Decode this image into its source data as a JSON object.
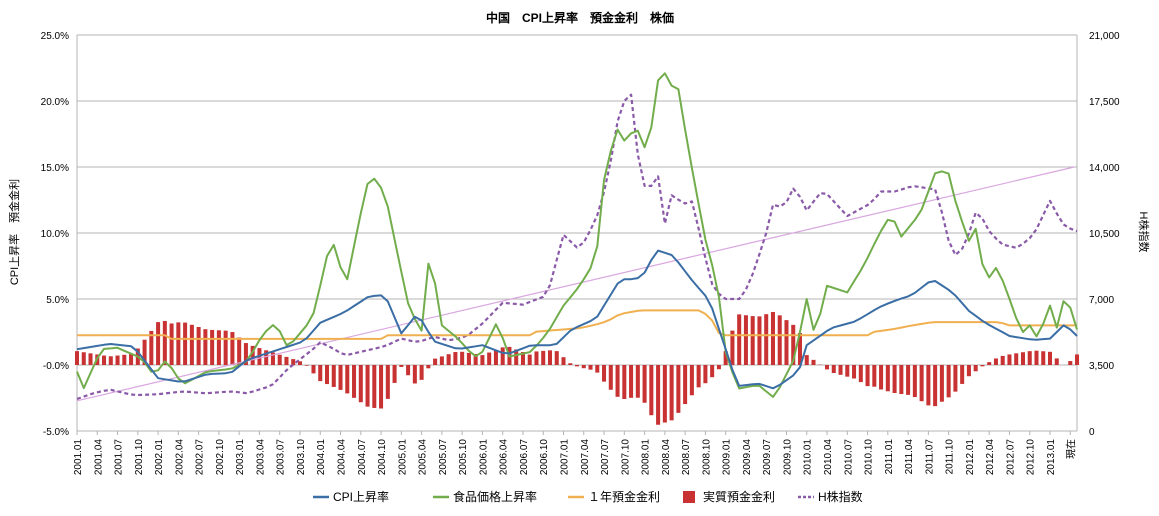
{
  "chart_data": {
    "type": "bar+line",
    "title": "中国　CPI上昇率　預金金利　株価",
    "ylabel_left": "CPI上昇率　預金金利",
    "ylabel_right": "H株指数",
    "y_left_range": [
      -5.0,
      25.0
    ],
    "y_left_ticks": [
      "-5.0%",
      "-0.0%",
      "5.0%",
      "10.0%",
      "15.0%",
      "20.0%",
      "25.0%"
    ],
    "y_right_range": [
      0,
      21000
    ],
    "y_right_ticks": [
      "0",
      "3,500",
      "7,000",
      "10,500",
      "14,000",
      "17,500",
      "21,000"
    ],
    "x_tick_labels": [
      "2001.01",
      "2001.04",
      "2001.07",
      "2001.10",
      "2002.01",
      "2002.04",
      "2002.07",
      "2002.10",
      "2003.01",
      "2003.04",
      "2003.07",
      "2003.10",
      "2004.01",
      "2004.04",
      "2004.07",
      "2004.10",
      "2005.01",
      "2005.04",
      "2005.07",
      "2005.10",
      "2006.01",
      "2006.04",
      "2006.07",
      "2006.10",
      "2007.01",
      "2007.04",
      "2007.07",
      "2007.10",
      "2008.01",
      "2008.04",
      "2008.07",
      "2008.10",
      "2009.01",
      "2009.04",
      "2009.07",
      "2009.10",
      "2010.01",
      "2010.04",
      "2010.07",
      "2010.10",
      "2011.01",
      "2011.04",
      "2011.07",
      "2011.10",
      "2012.01",
      "2012.04",
      "2012.07",
      "2012.10",
      "2013.01",
      "現在"
    ],
    "series": [
      {
        "name": "CPI上昇率",
        "kind": "line",
        "color": "#3a6ea5"
      },
      {
        "name": "食品価格上昇率",
        "kind": "line",
        "color": "#72ad4c"
      },
      {
        "name": "１年預金金利",
        "kind": "line",
        "color": "#f0b050"
      },
      {
        "name": "実質預金金利",
        "kind": "bar",
        "color": "#c83232"
      },
      {
        "name": "H株指数",
        "kind": "dashed-line",
        "color": "#8a5aa8"
      }
    ],
    "cpi_anchors": [
      [
        2001.0,
        1.2
      ],
      [
        2001.4,
        1.6
      ],
      [
        2001.7,
        1.4
      ],
      [
        2001.9,
        -0.2
      ],
      [
        2002.0,
        -1.0
      ],
      [
        2002.3,
        -1.3
      ],
      [
        2002.6,
        -0.7
      ],
      [
        2002.9,
        -0.6
      ],
      [
        2003.1,
        0.4
      ],
      [
        2003.4,
        1.0
      ],
      [
        2003.8,
        1.8
      ],
      [
        2004.0,
        3.2
      ],
      [
        2004.3,
        4.0
      ],
      [
        2004.6,
        5.2
      ],
      [
        2004.8,
        5.3
      ],
      [
        2005.0,
        2.4
      ],
      [
        2005.2,
        3.9
      ],
      [
        2005.4,
        1.8
      ],
      [
        2005.7,
        1.2
      ],
      [
        2006.0,
        1.5
      ],
      [
        2006.3,
        0.8
      ],
      [
        2006.6,
        1.5
      ],
      [
        2006.9,
        1.5
      ],
      [
        2007.1,
        2.7
      ],
      [
        2007.4,
        3.5
      ],
      [
        2007.7,
        6.5
      ],
      [
        2007.9,
        6.5
      ],
      [
        2008.0,
        7.0
      ],
      [
        2008.15,
        8.7
      ],
      [
        2008.35,
        8.3
      ],
      [
        2008.6,
        6.3
      ],
      [
        2008.8,
        4.9
      ],
      [
        2009.0,
        1.2
      ],
      [
        2009.15,
        -1.6
      ],
      [
        2009.4,
        -1.4
      ],
      [
        2009.6,
        -1.8
      ],
      [
        2009.9,
        -0.5
      ],
      [
        2010.0,
        1.5
      ],
      [
        2010.3,
        2.8
      ],
      [
        2010.6,
        3.3
      ],
      [
        2010.9,
        4.4
      ],
      [
        2011.1,
        4.9
      ],
      [
        2011.3,
        5.3
      ],
      [
        2011.55,
        6.5
      ],
      [
        2011.8,
        5.5
      ],
      [
        2012.0,
        4.1
      ],
      [
        2012.2,
        3.2
      ],
      [
        2012.5,
        2.2
      ],
      [
        2012.8,
        1.9
      ],
      [
        2013.0,
        2.0
      ],
      [
        2013.2,
        3.2
      ],
      [
        2013.3,
        2.2
      ]
    ],
    "food_anchors": [
      [
        2001.0,
        -0.5
      ],
      [
        2001.05,
        -2.2
      ],
      [
        2001.3,
        1.2
      ],
      [
        2001.5,
        1.3
      ],
      [
        2001.8,
        0.5
      ],
      [
        2001.95,
        -0.8
      ],
      [
        2002.1,
        0.4
      ],
      [
        2002.3,
        -1.5
      ],
      [
        2002.6,
        -0.5
      ],
      [
        2002.9,
        -0.3
      ],
      [
        2003.1,
        0.3
      ],
      [
        2003.3,
        2.4
      ],
      [
        2003.45,
        3.2
      ],
      [
        2003.6,
        1.3
      ],
      [
        2003.9,
        3.5
      ],
      [
        2004.0,
        6.0
      ],
      [
        2004.1,
        8.7
      ],
      [
        2004.2,
        9.3
      ],
      [
        2004.3,
        5.5
      ],
      [
        2004.45,
        10.0
      ],
      [
        2004.55,
        13.0
      ],
      [
        2004.62,
        14.5
      ],
      [
        2004.8,
        13.0
      ],
      [
        2004.95,
        8.5
      ],
      [
        2005.1,
        4.2
      ],
      [
        2005.25,
        2.6
      ],
      [
        2005.35,
        8.7
      ],
      [
        2005.5,
        3.0
      ],
      [
        2005.7,
        2.0
      ],
      [
        2005.9,
        0.6
      ],
      [
        2006.0,
        1.0
      ],
      [
        2006.2,
        3.5
      ],
      [
        2006.3,
        0.6
      ],
      [
        2006.6,
        1.0
      ],
      [
        2006.8,
        2.4
      ],
      [
        2007.0,
        4.5
      ],
      [
        2007.2,
        6.0
      ],
      [
        2007.4,
        8.0
      ],
      [
        2007.5,
        14.0
      ],
      [
        2007.65,
        18.0
      ],
      [
        2007.75,
        17.0
      ],
      [
        2007.9,
        18.0
      ],
      [
        2008.0,
        16.5
      ],
      [
        2008.1,
        18.3
      ],
      [
        2008.2,
        23.2
      ],
      [
        2008.3,
        21.0
      ],
      [
        2008.4,
        21.5
      ],
      [
        2008.55,
        16.0
      ],
      [
        2008.75,
        9.5
      ],
      [
        2008.9,
        6.0
      ],
      [
        2009.0,
        1.0
      ],
      [
        2009.15,
        -1.8
      ],
      [
        2009.4,
        -1.5
      ],
      [
        2009.6,
        -2.5
      ],
      [
        2009.85,
        0.5
      ],
      [
        2010.0,
        5.0
      ],
      [
        2010.1,
        2.2
      ],
      [
        2010.25,
        6.0
      ],
      [
        2010.5,
        5.5
      ],
      [
        2010.7,
        7.5
      ],
      [
        2010.9,
        10.0
      ],
      [
        2011.05,
        11.5
      ],
      [
        2011.15,
        9.6
      ],
      [
        2011.4,
        11.5
      ],
      [
        2011.6,
        14.8
      ],
      [
        2011.75,
        14.5
      ],
      [
        2011.85,
        12.0
      ],
      [
        2012.0,
        9.4
      ],
      [
        2012.1,
        10.5
      ],
      [
        2012.2,
        6.2
      ],
      [
        2012.35,
        7.5
      ],
      [
        2012.5,
        5.0
      ],
      [
        2012.65,
        2.4
      ],
      [
        2012.75,
        3.0
      ],
      [
        2012.85,
        2.0
      ],
      [
        2013.0,
        4.5
      ],
      [
        2013.1,
        2.5
      ],
      [
        2013.2,
        6.0
      ],
      [
        2013.3,
        2.7
      ]
    ],
    "deposit_anchors": [
      [
        2001.0,
        2.25
      ],
      [
        2002.13,
        2.25
      ],
      [
        2002.14,
        1.98
      ],
      [
        2004.8,
        1.98
      ],
      [
        2004.81,
        2.25
      ],
      [
        2006.6,
        2.25
      ],
      [
        2006.65,
        2.52
      ],
      [
        2007.2,
        2.79
      ],
      [
        2007.4,
        3.06
      ],
      [
        2007.55,
        3.33
      ],
      [
        2007.62,
        3.6
      ],
      [
        2007.7,
        3.87
      ],
      [
        2007.95,
        4.14
      ],
      [
        2008.7,
        4.14
      ],
      [
        2008.75,
        3.87
      ],
      [
        2008.82,
        3.6
      ],
      [
        2008.88,
        2.52
      ],
      [
        2008.98,
        2.25
      ],
      [
        2010.8,
        2.25
      ],
      [
        2010.82,
        2.5
      ],
      [
        2011.1,
        2.75
      ],
      [
        2011.3,
        3.0
      ],
      [
        2011.55,
        3.25
      ],
      [
        2012.4,
        3.25
      ],
      [
        2012.45,
        3.0
      ],
      [
        2012.5,
        3.0
      ],
      [
        2013.3,
        3.0
      ]
    ],
    "hshare_anchors": [
      [
        2001.0,
        1700
      ],
      [
        2001.2,
        2000
      ],
      [
        2001.4,
        2200
      ],
      [
        2001.7,
        1900
      ],
      [
        2002.0,
        1950
      ],
      [
        2002.3,
        2100
      ],
      [
        2002.6,
        2000
      ],
      [
        2002.9,
        2100
      ],
      [
        2003.1,
        2000
      ],
      [
        2003.4,
        2400
      ],
      [
        2003.6,
        3300
      ],
      [
        2003.9,
        4300
      ],
      [
        2004.0,
        4700
      ],
      [
        2004.15,
        4400
      ],
      [
        2004.3,
        4000
      ],
      [
        2004.5,
        4200
      ],
      [
        2004.8,
        4500
      ],
      [
        2005.0,
        4900
      ],
      [
        2005.2,
        4700
      ],
      [
        2005.4,
        5000
      ],
      [
        2005.6,
        4800
      ],
      [
        2005.8,
        5000
      ],
      [
        2006.0,
        5700
      ],
      [
        2006.25,
        6800
      ],
      [
        2006.5,
        6700
      ],
      [
        2006.8,
        7200
      ],
      [
        2007.0,
        10400
      ],
      [
        2007.2,
        9600
      ],
      [
        2007.4,
        11200
      ],
      [
        2007.55,
        13400
      ],
      [
        2007.65,
        16200
      ],
      [
        2007.75,
        17500
      ],
      [
        2007.8,
        19500
      ],
      [
        2007.85,
        17000
      ],
      [
        2007.95,
        13500
      ],
      [
        2008.05,
        12500
      ],
      [
        2008.15,
        14000
      ],
      [
        2008.25,
        11000
      ],
      [
        2008.35,
        12800
      ],
      [
        2008.45,
        12000
      ],
      [
        2008.6,
        12200
      ],
      [
        2008.7,
        10000
      ],
      [
        2008.85,
        7500
      ],
      [
        2009.0,
        7000
      ],
      [
        2009.2,
        7000
      ],
      [
        2009.35,
        8500
      ],
      [
        2009.5,
        10500
      ],
      [
        2009.6,
        12300
      ],
      [
        2009.7,
        11700
      ],
      [
        2009.85,
        13000
      ],
      [
        2010.0,
        11700
      ],
      [
        2010.2,
        12800
      ],
      [
        2010.5,
        11400
      ],
      [
        2010.8,
        12100
      ],
      [
        2010.9,
        12700
      ],
      [
        2011.1,
        12700
      ],
      [
        2011.3,
        13000
      ],
      [
        2011.6,
        12800
      ],
      [
        2011.8,
        9200
      ],
      [
        2011.95,
        9800
      ],
      [
        2012.1,
        11800
      ],
      [
        2012.25,
        10600
      ],
      [
        2012.4,
        9900
      ],
      [
        2012.6,
        9700
      ],
      [
        2012.8,
        10400
      ],
      [
        2013.0,
        12200
      ],
      [
        2013.15,
        11000
      ],
      [
        2013.3,
        10600
      ]
    ],
    "trend_line": [
      [
        2001.0,
        1600
      ],
      [
        2013.3,
        14000
      ]
    ]
  }
}
